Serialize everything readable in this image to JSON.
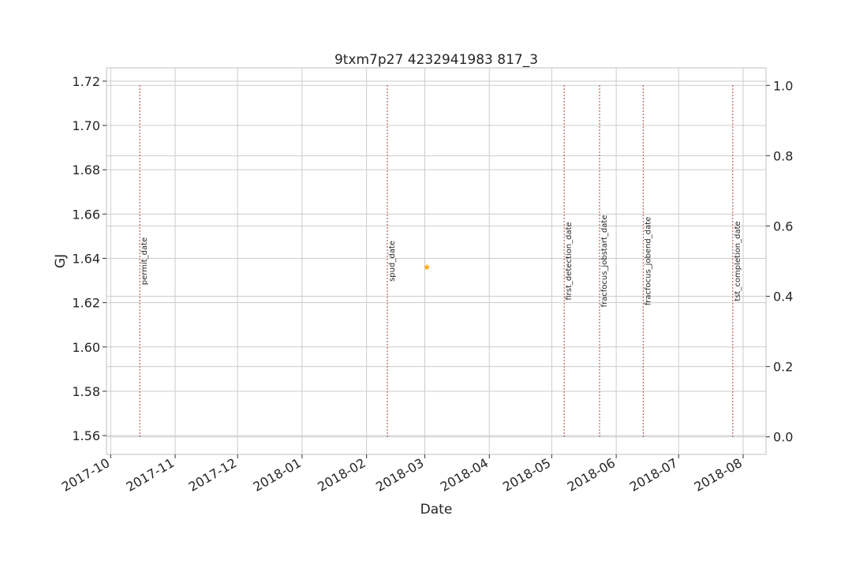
{
  "chart_data": {
    "type": "scatter",
    "title": "9txm7p27 4232941983 817_3",
    "xlabel": "Date",
    "ylabel": "GJ",
    "ylabel_color": "#1f77b4",
    "x_range": [
      "2017-09-29",
      "2018-08-12"
    ],
    "ylim": [
      1.5515,
      1.726
    ],
    "y_ticks": [
      1.56,
      1.58,
      1.6,
      1.62,
      1.64,
      1.66,
      1.68,
      1.7,
      1.72
    ],
    "y_tick_labels": [
      "1.56",
      "1.58",
      "1.60",
      "1.62",
      "1.64",
      "1.66",
      "1.68",
      "1.70",
      "1.72"
    ],
    "y2lim": [
      -0.05,
      1.05
    ],
    "y2_ticks": [
      0.0,
      0.2,
      0.4,
      0.6,
      0.8,
      1.0
    ],
    "y2_tick_labels": [
      "0.0",
      "0.2",
      "0.4",
      "0.6",
      "0.8",
      "1.0"
    ],
    "x_ticks": [
      "2017-10-01",
      "2017-11-01",
      "2017-12-01",
      "2018-01-01",
      "2018-02-01",
      "2018-03-01",
      "2018-04-01",
      "2018-05-01",
      "2018-06-01",
      "2018-07-01",
      "2018-08-01"
    ],
    "x_tick_labels": [
      "2017-10",
      "2017-11",
      "2017-12",
      "2018-01",
      "2018-02",
      "2018-03",
      "2018-04",
      "2018-05",
      "2018-06",
      "2018-07",
      "2018-08"
    ],
    "grid": true,
    "series": [
      {
        "marker": "star",
        "color": "#ffa500",
        "points": [
          {
            "x": "2018-03-02",
            "y": 1.636
          }
        ]
      }
    ],
    "event_lines": [
      {
        "label": "permit_date",
        "x": "2017-10-15"
      },
      {
        "label": "spud_date",
        "x": "2018-02-11"
      },
      {
        "label": "first_detection_date",
        "x": "2018-05-07"
      },
      {
        "label": "fracfocus_jobstart_date",
        "x": "2018-05-24"
      },
      {
        "label": "fracfocus_jobend_date",
        "x": "2018-06-14"
      },
      {
        "label": "tst_completion_date",
        "x": "2018-07-27"
      }
    ],
    "event_line_color": "#a03030",
    "event_line_y2_range": [
      0.0,
      1.0
    ]
  }
}
